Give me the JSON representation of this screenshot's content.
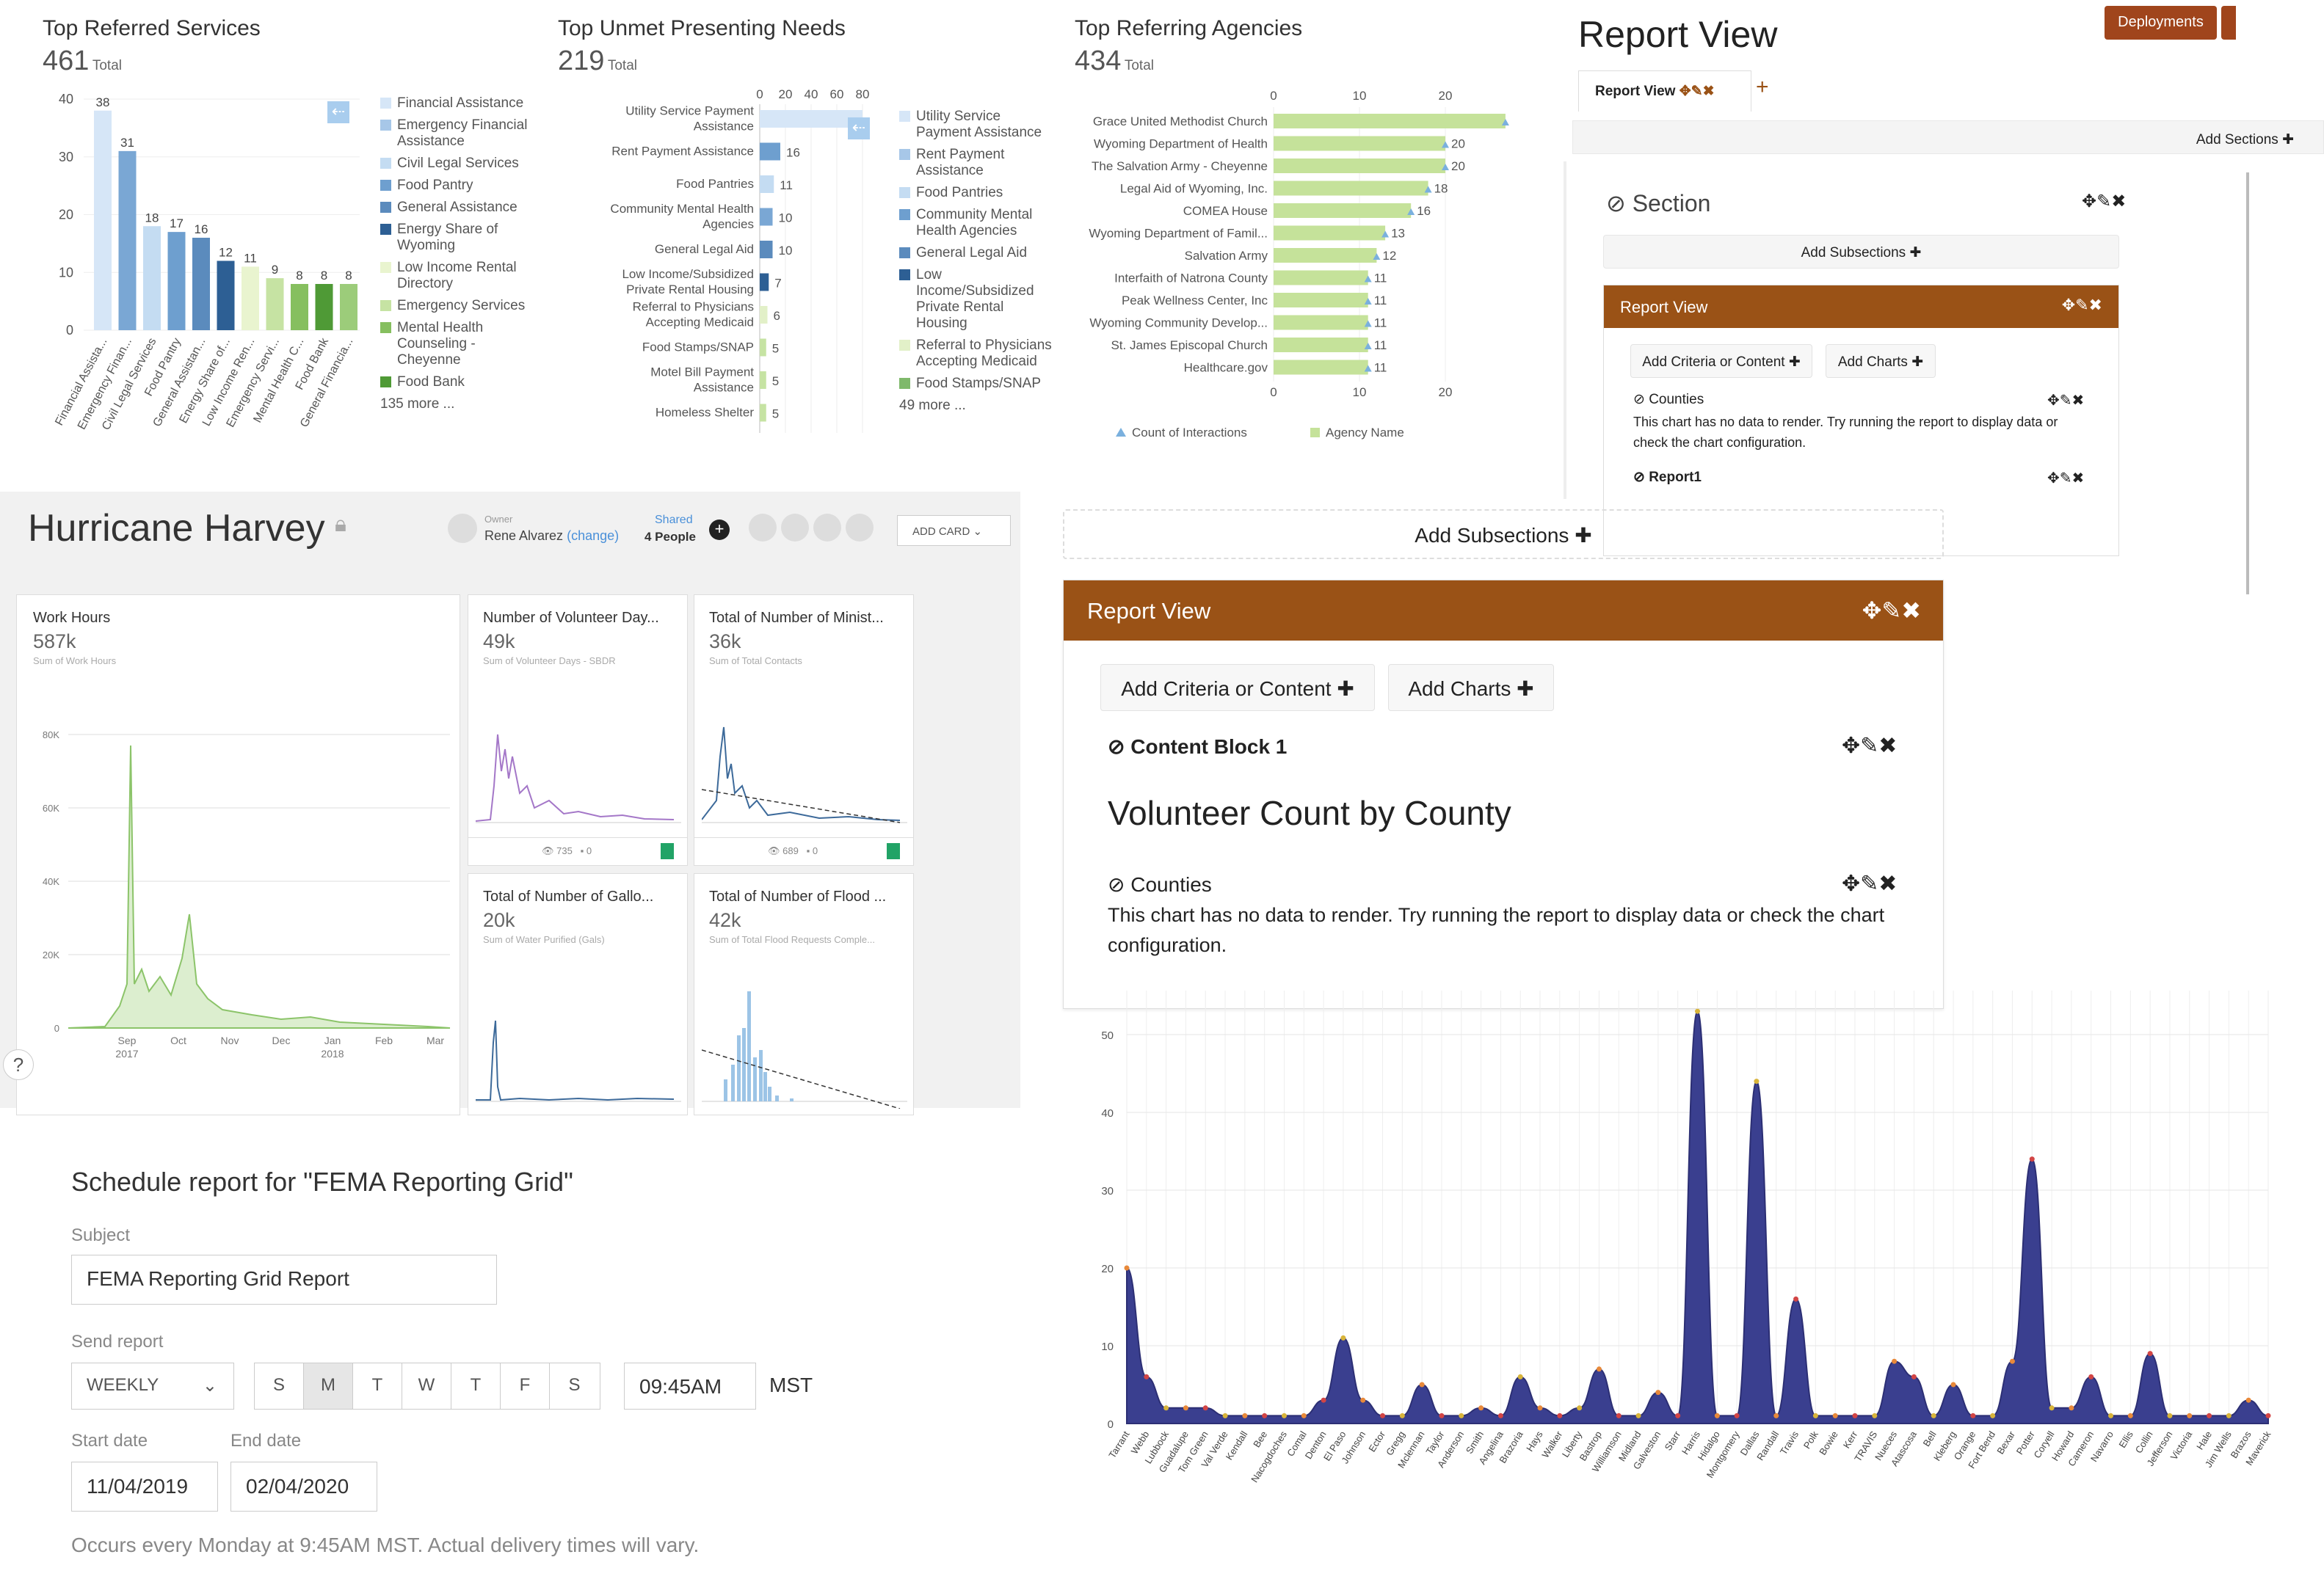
{
  "panels": {
    "referred": {
      "title": "Top Referred Services",
      "total": "461",
      "total_label": "Total",
      "legend": [
        {
          "label": "Financial Assistance",
          "color": "#d6e6f7"
        },
        {
          "label": "Emergency Financial Assistance",
          "color": "#a7c7e8"
        },
        {
          "label": "Civil Legal Services",
          "color": "#c4dcf2"
        },
        {
          "label": "Food Pantry",
          "color": "#6e9fcf"
        },
        {
          "label": "General Assistance",
          "color": "#5b8bbd"
        },
        {
          "label": "Energy Share of Wyoming",
          "color": "#2d5f94"
        },
        {
          "label": "Low Income Rental Directory",
          "color": "#e9f4cf"
        },
        {
          "label": "Emergency Services",
          "color": "#c6e3a3"
        },
        {
          "label": "Mental Health Counseling - Cheyenne",
          "color": "#86bf5f"
        },
        {
          "label": "Food Bank",
          "color": "#4f9a36"
        }
      ],
      "more": "135 more ..."
    },
    "unmet": {
      "title": "Top Unmet Presenting Needs",
      "total": "219",
      "total_label": "Total",
      "legend": [
        {
          "label": "Utility Service Payment Assistance",
          "color": "#d6e6f7"
        },
        {
          "label": "Rent Payment Assistance",
          "color": "#a7c7e8"
        },
        {
          "label": "Food Pantries",
          "color": "#c4dcf2"
        },
        {
          "label": "Community Mental Health Agencies",
          "color": "#6e9fcf"
        },
        {
          "label": "General Legal Aid",
          "color": "#5b8bbd"
        },
        {
          "label": "Low Income/Subsidized Private Rental Housing",
          "color": "#2d5f94"
        },
        {
          "label": "Referral to Physicians Accepting Medicaid",
          "color": "#e2f0c8"
        },
        {
          "label": "Food Stamps/SNAP",
          "color": "#7fb96b"
        }
      ],
      "more": "49 more ..."
    },
    "agencies": {
      "title": "Top Referring Agencies",
      "total": "434",
      "total_label": "Total",
      "legend_count": "Count of Interactions",
      "legend_agency": "Agency Name"
    }
  },
  "report_top": {
    "title": "Report View",
    "deployments": "Deployments",
    "tab_label": "Report View",
    "add_sections": "Add Sections",
    "section_label": "Section",
    "add_subsections": "Add Subsections",
    "rv_header": "Report View",
    "add_criteria": "Add Criteria or Content",
    "add_charts": "Add Charts",
    "counties": "Counties",
    "counties_msg": "This chart has no data to render. Try running the report to display data or check the chart configuration.",
    "report1": "Report1"
  },
  "report_big": {
    "add_subsections": "Add Subsections",
    "header": "Report View",
    "add_criteria": "Add Criteria or Content",
    "add_charts": "Add Charts",
    "content_block": "Content Block 1",
    "heading": "Volunteer Count by County",
    "counties": "Counties",
    "msg": "This chart has no data to render. Try running the report to display data or check the chart configuration."
  },
  "harvey": {
    "title": "Hurricane Harvey",
    "owner_label": "Owner",
    "owner": "Rene Alvarez",
    "change": "(change)",
    "shared_label": "Shared",
    "shared_count": "4 People",
    "add_card": "ADD CARD",
    "work": {
      "title": "Work Hours",
      "value": "587k",
      "sub": "Sum of Work Hours"
    },
    "cards": [
      {
        "title": "Number of Volunteer Day...",
        "value": "49k",
        "sub": "Sum of Volunteer Days - SBDR",
        "views": "735",
        "comments": "0"
      },
      {
        "title": "Total of Number of Minist...",
        "value": "36k",
        "sub": "Sum of Total Contacts",
        "views": "689",
        "comments": "0"
      },
      {
        "title": "Total of Number of Gallo...",
        "value": "20k",
        "sub": "Sum of Water Purified (Gals)"
      },
      {
        "title": "Total of Number of Flood ...",
        "value": "42k",
        "sub": "Sum of Total Flood Requests Comple..."
      }
    ]
  },
  "schedule": {
    "title": "Schedule report for \"FEMA Reporting Grid\"",
    "subject_label": "Subject",
    "subject": "FEMA Reporting Grid Report",
    "send_label": "Send report",
    "frequency": "WEEKLY",
    "days": [
      "S",
      "M",
      "T",
      "W",
      "T",
      "F",
      "S"
    ],
    "time": "09:45AM",
    "tz": "MST",
    "start_label": "Start date",
    "start": "11/04/2019",
    "end_label": "End date",
    "end": "02/04/2020",
    "note": "Occurs every Monday at 9:45AM MST. Actual delivery times will vary."
  },
  "chart_data": [
    {
      "type": "bar",
      "title": "Top Referred Services",
      "categories": [
        "Financial Assista...",
        "Emergency Finan...",
        "Civil Legal Services",
        "Food Pantry",
        "General Assistan...",
        "Energy Share of...",
        "Low Income Ren...",
        "Emergency Servi...",
        "Mental Health C...",
        "Food Bank",
        "General Financia..."
      ],
      "values": [
        38,
        31,
        18,
        17,
        16,
        12,
        11,
        9,
        8,
        8,
        8
      ],
      "ylim": [
        0,
        40
      ],
      "yticks": [
        0,
        10,
        20,
        30,
        40
      ],
      "colors": [
        "#d6e6f7",
        "#7aa7d4",
        "#c4dcf2",
        "#6e9fcf",
        "#5b8bbd",
        "#2d5f94",
        "#e9f4cf",
        "#c6e3a3",
        "#86bf5f",
        "#4f9a36",
        "#9ccc7a"
      ]
    },
    {
      "type": "bar",
      "title": "Top Unmet Presenting Needs",
      "orientation": "horizontal",
      "categories": [
        "Utility Service Payment Assistance",
        "Rent Payment Assistance",
        "Food Pantries",
        "Community Mental Health Agencies",
        "General Legal Aid",
        "Low Income/Subsidized Private Rental Housing",
        "Referral to Physicians Accepting Medicaid",
        "Food Stamps/SNAP",
        "Motel Bill Payment Assistance",
        "Homeless Shelter"
      ],
      "values": [
        80,
        16,
        11,
        10,
        10,
        7,
        6,
        5,
        5,
        5
      ],
      "xlim": [
        0,
        80
      ],
      "xticks": [
        0,
        20,
        40,
        60,
        80
      ],
      "labels": [
        "",
        "16",
        "11",
        "10",
        "10",
        "7",
        "6",
        "5",
        "5",
        "5"
      ],
      "colors": [
        "#d6e6f7",
        "#6e9fcf",
        "#c4dcf2",
        "#7aa7d4",
        "#5b8bbd",
        "#2d5f94",
        "#e2f0c8",
        "#c6e3a3",
        "#c6e3a3",
        "#c6e3a3"
      ]
    },
    {
      "type": "bar",
      "title": "Top Referring Agencies",
      "orientation": "horizontal",
      "categories": [
        "Grace United Methodist Church",
        "Wyoming Department of Health",
        "The Salvation Army - Cheyenne",
        "Legal Aid of Wyoming, Inc.",
        "COMEA House",
        "Wyoming Department of Famil...",
        "Salvation Army",
        "Interfaith of Natrona County",
        "Peak Wellness Center, Inc",
        "Wyoming Community Develop...",
        "St. James Episcopal Church",
        "Healthcare.gov"
      ],
      "values": [
        27,
        20,
        20,
        18,
        16,
        13,
        12,
        11,
        11,
        11,
        11,
        11
      ],
      "labels": [
        "",
        "20",
        "20",
        "18",
        "16",
        "13",
        "12",
        "11",
        "11",
        "11",
        "11",
        "11"
      ],
      "xlim": [
        0,
        27
      ],
      "xticks": [
        0,
        10,
        20
      ]
    },
    {
      "type": "area",
      "title": "Work Hours",
      "x": [
        "Sep 2017",
        "Oct",
        "Nov",
        "Dec",
        "Jan 2018",
        "Feb",
        "Mar"
      ],
      "ylim": [
        0,
        80000
      ],
      "yticks": [
        "0",
        "20K",
        "40K",
        "60K",
        "80K"
      ],
      "peak": 77000
    },
    {
      "type": "area",
      "title": "Volunteer Count by County",
      "categories": [
        "Tarrant",
        "Webb",
        "Lubbock",
        "Guadalupe",
        "Tom Green",
        "Val Verde",
        "Kendall",
        "Bee",
        "Nacogdoches",
        "Comal",
        "Denton",
        "El Paso",
        "Johnson",
        "Ector",
        "Gregg",
        "Mclennan",
        "Taylor",
        "Anderson",
        "Smith",
        "Angelina",
        "Brazoria",
        "Hays",
        "Walker",
        "Liberty",
        "Bastrop",
        "Williamson",
        "Midland",
        "Galveston",
        "Starr",
        "Harris",
        "Hidalgo",
        "Montgomery",
        "Dallas",
        "Randall",
        "Travis",
        "Polk",
        "Bowie",
        "Kerr",
        "TRAVIS",
        "Nueces",
        "Atascosa",
        "Bell",
        "Kleberg",
        "Orange",
        "Fort Bend",
        "Bexar",
        "Potter",
        "Coryell",
        "Howard",
        "Cameron",
        "Navarro",
        "Ellis",
        "Collin",
        "Jefferson",
        "Victoria",
        "Hale",
        "Jim Wells",
        "Brazos",
        "Maverick"
      ],
      "values": [
        20,
        6,
        2,
        2,
        2,
        1,
        1,
        1,
        1,
        1,
        3,
        11,
        3,
        1,
        1,
        5,
        1,
        1,
        2,
        1,
        6,
        2,
        1,
        2,
        7,
        1,
        1,
        4,
        1,
        53,
        1,
        1,
        44,
        1,
        16,
        1,
        1,
        1,
        1,
        8,
        6,
        1,
        5,
        1,
        1,
        8,
        34,
        2,
        2,
        6,
        1,
        1,
        9,
        1,
        1,
        1,
        1,
        3,
        1
      ],
      "ylim": [
        0,
        50
      ],
      "yticks": [
        0,
        10,
        20,
        30,
        40,
        50
      ]
    }
  ]
}
